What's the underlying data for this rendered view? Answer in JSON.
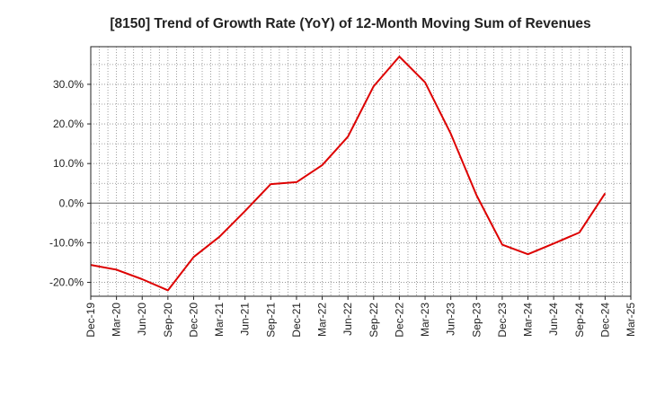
{
  "chart_data": {
    "type": "line",
    "title": "[8150]  Trend of Growth Rate (YoY) of 12-Month Moving Sum of Revenues",
    "xlabel": "",
    "ylabel": "",
    "x_ticks": [
      "Dec-19",
      "Mar-20",
      "Jun-20",
      "Sep-20",
      "Dec-20",
      "Mar-21",
      "Jun-21",
      "Sep-21",
      "Dec-21",
      "Mar-22",
      "Jun-22",
      "Sep-22",
      "Dec-22",
      "Mar-23",
      "Jun-23",
      "Sep-23",
      "Dec-23",
      "Mar-24",
      "Jun-24",
      "Sep-24",
      "Dec-24",
      "Mar-25"
    ],
    "y_ticks": [
      {
        "value": 30,
        "label": "30.0%"
      },
      {
        "value": 20,
        "label": "20.0%"
      },
      {
        "value": 10,
        "label": "10.0%"
      },
      {
        "value": 0,
        "label": "0.0%"
      },
      {
        "value": -10,
        "label": "-10.0%"
      },
      {
        "value": -20,
        "label": "-20.0%"
      }
    ],
    "ylim": [
      -23.5,
      39.5
    ],
    "grid": true,
    "series": [
      {
        "color": "#dd0000",
        "points": [
          {
            "x": "Dec-19",
            "y": -15.6
          },
          {
            "x": "Mar-20",
            "y": -16.8
          },
          {
            "x": "Jun-20",
            "y": -19.2
          },
          {
            "x": "Sep-20",
            "y": -22.0
          },
          {
            "x": "Dec-20",
            "y": -13.6
          },
          {
            "x": "Mar-21",
            "y": -8.5
          },
          {
            "x": "Jun-21",
            "y": -2.0
          },
          {
            "x": "Sep-21",
            "y": 4.8
          },
          {
            "x": "Dec-21",
            "y": 5.3
          },
          {
            "x": "Mar-22",
            "y": 9.6
          },
          {
            "x": "Jun-22",
            "y": 16.8
          },
          {
            "x": "Sep-22",
            "y": 29.5
          },
          {
            "x": "Dec-22",
            "y": 37.0
          },
          {
            "x": "Mar-23",
            "y": 30.5
          },
          {
            "x": "Jun-23",
            "y": 17.5
          },
          {
            "x": "Sep-23",
            "y": 2.0
          },
          {
            "x": "Dec-23",
            "y": -10.5
          },
          {
            "x": "Mar-24",
            "y": -12.9
          },
          {
            "x": "Jun-24",
            "y": -10.2
          },
          {
            "x": "Sep-24",
            "y": -7.4
          },
          {
            "x": "Dec-24",
            "y": 2.5
          }
        ]
      }
    ]
  }
}
